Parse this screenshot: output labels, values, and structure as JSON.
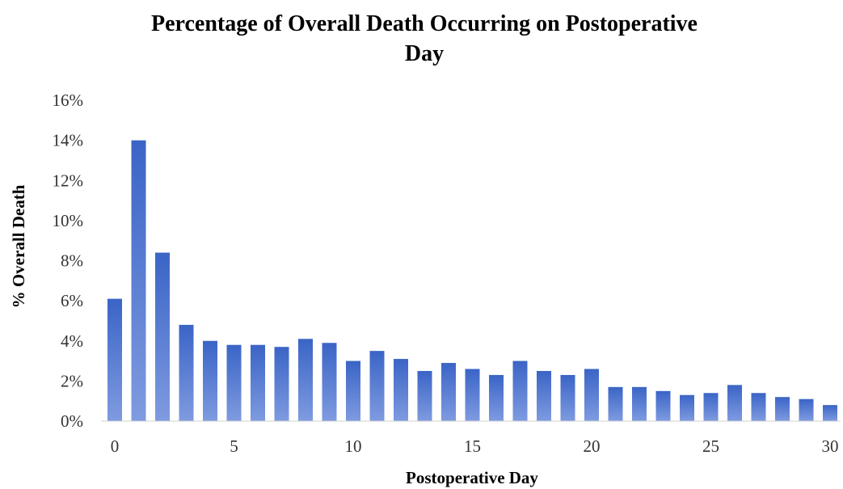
{
  "chart_data": {
    "type": "bar",
    "title_line1": "Percentage of Overall Death Occurring on Postoperative",
    "title_line2": "Day",
    "xlabel": "Postoperative Day",
    "ylabel": "% Overall Death",
    "ylim": [
      0,
      16
    ],
    "yticks": [
      "0%",
      "2%",
      "4%",
      "6%",
      "8%",
      "10%",
      "12%",
      "14%",
      "16%"
    ],
    "xticks": [
      "0",
      "5",
      "10",
      "15",
      "20",
      "25",
      "30"
    ],
    "grid": false,
    "legend": "none",
    "bar_color": "#4472C4",
    "categories": [
      0,
      1,
      2,
      3,
      4,
      5,
      6,
      7,
      8,
      9,
      10,
      11,
      12,
      13,
      14,
      15,
      16,
      17,
      18,
      19,
      20,
      21,
      22,
      23,
      24,
      25,
      26,
      27,
      28,
      29,
      30
    ],
    "values": [
      6.1,
      14.0,
      8.4,
      4.8,
      4.0,
      3.8,
      3.8,
      3.7,
      4.1,
      3.9,
      3.0,
      3.5,
      3.1,
      2.5,
      2.9,
      2.6,
      2.3,
      3.0,
      2.5,
      2.3,
      2.6,
      1.7,
      1.7,
      1.5,
      1.3,
      1.4,
      1.8,
      1.4,
      1.2,
      1.1,
      0.8
    ]
  }
}
